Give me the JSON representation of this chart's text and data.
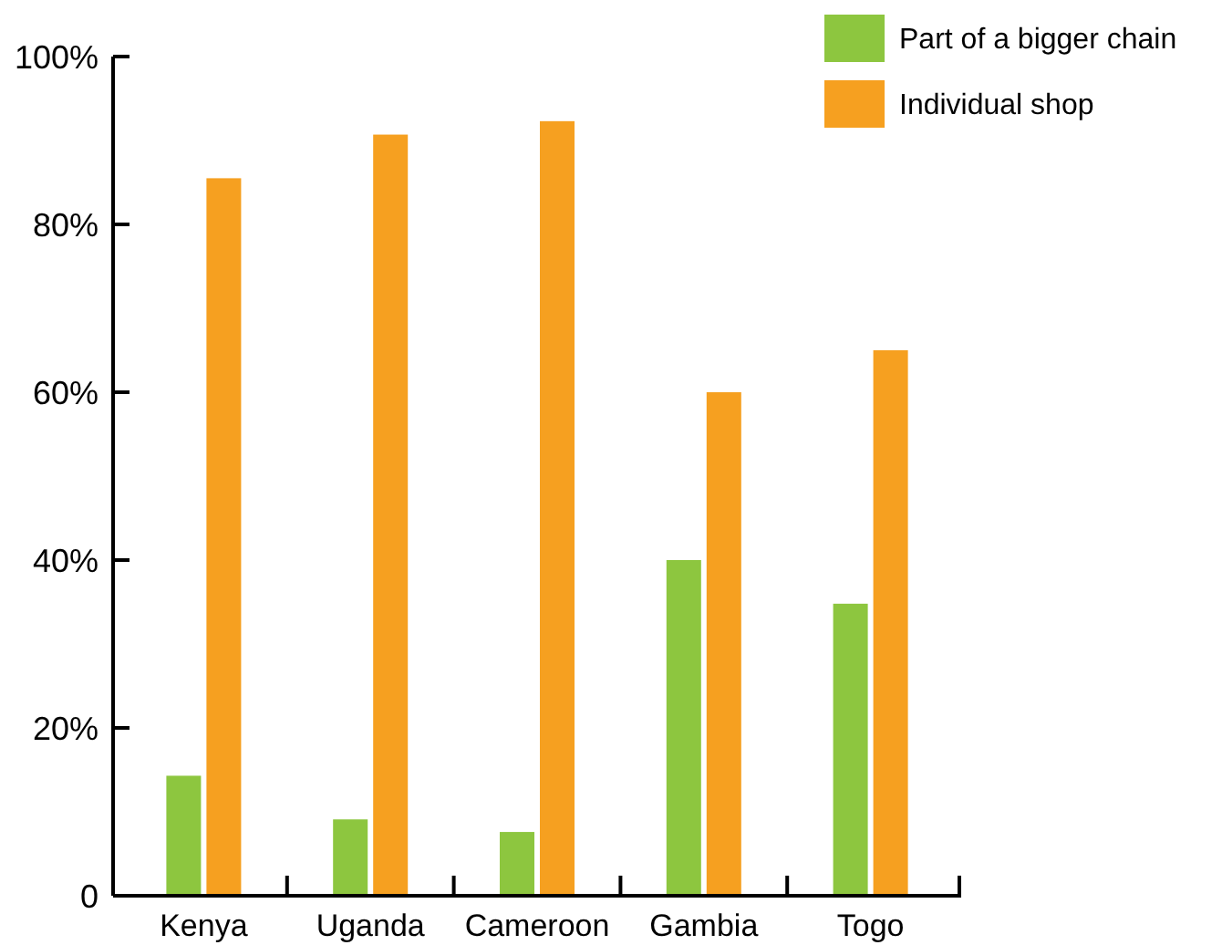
{
  "chart_data": {
    "type": "bar",
    "categories": [
      "Kenya",
      "Uganda",
      "Cameroon",
      "Gambia",
      "Togo"
    ],
    "series": [
      {
        "name": "Part of a bigger chain",
        "color": "#8dc63f",
        "values": [
          14.3,
          9.1,
          7.6,
          40,
          34.8
        ]
      },
      {
        "name": "Individual shop",
        "color": "#f6a020",
        "values": [
          85.5,
          90.7,
          92.3,
          60,
          65
        ]
      }
    ],
    "ylim": [
      0,
      100
    ],
    "yticks": [
      {
        "value": 0,
        "label": "0"
      },
      {
        "value": 20,
        "label": "20%"
      },
      {
        "value": 40,
        "label": "40%"
      },
      {
        "value": 60,
        "label": "60%"
      },
      {
        "value": 80,
        "label": "80%"
      },
      {
        "value": 100,
        "label": "100%"
      }
    ],
    "grid": false,
    "legend": "top right"
  }
}
